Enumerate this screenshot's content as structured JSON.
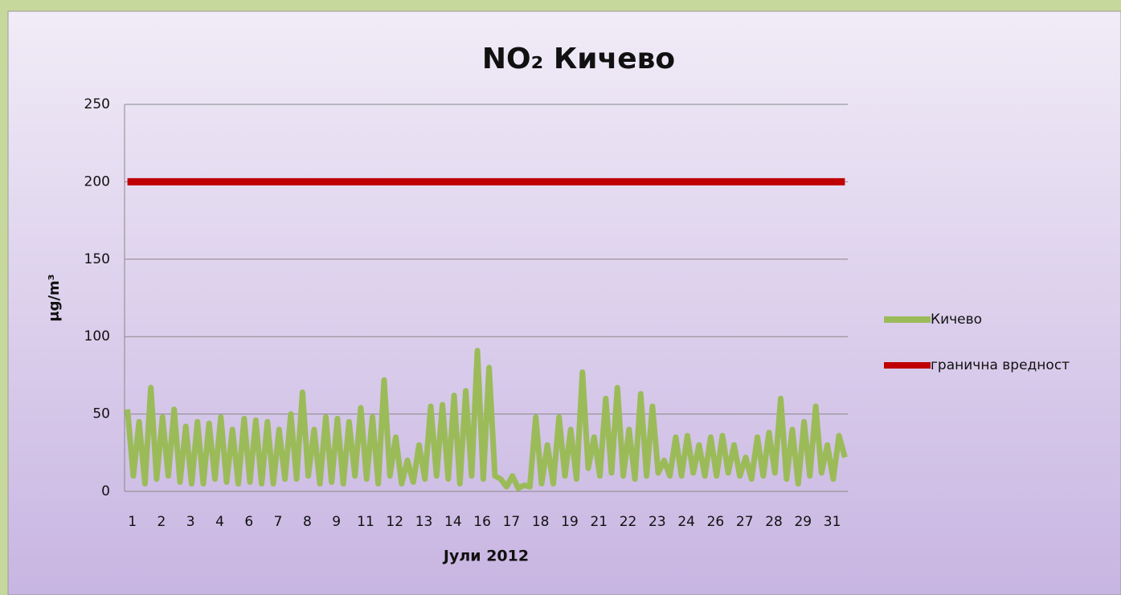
{
  "chart_data": {
    "type": "line",
    "title": "NO₂ Кичево",
    "ylabel": "μg/m³",
    "xlabel": "Јули 2012",
    "categories": [
      "1",
      null,
      null,
      null,
      null,
      "2",
      null,
      null,
      null,
      null,
      "3",
      null,
      null,
      null,
      null,
      "4",
      null,
      null,
      null,
      null,
      "6",
      null,
      null,
      null,
      null,
      "7",
      null,
      null,
      null,
      null,
      "8",
      null,
      null,
      null,
      null,
      "9",
      null,
      null,
      null,
      null,
      "11",
      null,
      null,
      null,
      null,
      "12",
      null,
      null,
      null,
      null,
      "13",
      null,
      null,
      null,
      null,
      "14",
      null,
      null,
      null,
      null,
      "16",
      null,
      null,
      null,
      null,
      "17",
      null,
      null,
      null,
      null,
      "18",
      null,
      null,
      null,
      null,
      "19",
      null,
      null,
      null,
      null,
      "21",
      null,
      null,
      null,
      null,
      "22",
      null,
      null,
      null,
      null,
      "23",
      null,
      null,
      null,
      null,
      "24",
      null,
      null,
      null,
      null,
      "26",
      null,
      null,
      null,
      null,
      "27",
      null,
      null,
      null,
      null,
      "28",
      null,
      null,
      null,
      null,
      "29",
      null,
      null,
      null,
      null,
      "31",
      null,
      null,
      null
    ],
    "series": [
      {
        "name": "Кичево",
        "color": "#9bbb59",
        "values": [
          53,
          10,
          45,
          5,
          67,
          8,
          48,
          10,
          53,
          6,
          42,
          5,
          45,
          5,
          44,
          8,
          48,
          6,
          40,
          5,
          47,
          6,
          46,
          5,
          45,
          5,
          40,
          8,
          50,
          8,
          64,
          10,
          40,
          5,
          48,
          6,
          47,
          5,
          45,
          10,
          54,
          8,
          48,
          5,
          72,
          10,
          35,
          5,
          20,
          6,
          30,
          8,
          55,
          10,
          56,
          8,
          62,
          5,
          65,
          10,
          91,
          8,
          80,
          10,
          8,
          3,
          10,
          2,
          4,
          3,
          48,
          5,
          30,
          5,
          48,
          10,
          40,
          8,
          77,
          15,
          35,
          10,
          60,
          12,
          67,
          10,
          40,
          8,
          63,
          10,
          55,
          12,
          20,
          10,
          35,
          10,
          36,
          12,
          30,
          10,
          35,
          10,
          36,
          12,
          30,
          10,
          22,
          8,
          35,
          10,
          38,
          12,
          60,
          8,
          40,
          5,
          45,
          10,
          55,
          12,
          30,
          8,
          36,
          22
        ]
      },
      {
        "name": "гранична вредност",
        "color": "#c00000",
        "values": [
          200,
          200,
          200,
          200,
          200,
          200,
          200,
          200,
          200,
          200,
          200,
          200,
          200,
          200,
          200,
          200,
          200,
          200,
          200,
          200,
          200,
          200,
          200,
          200,
          200,
          200,
          200,
          200,
          200,
          200,
          200,
          200,
          200,
          200,
          200,
          200,
          200,
          200,
          200,
          200,
          200,
          200,
          200,
          200,
          200,
          200,
          200,
          200,
          200,
          200,
          200,
          200,
          200,
          200,
          200,
          200,
          200,
          200,
          200,
          200,
          200,
          200,
          200,
          200,
          200,
          200,
          200,
          200,
          200,
          200,
          200,
          200,
          200,
          200,
          200,
          200,
          200,
          200,
          200,
          200,
          200,
          200,
          200,
          200,
          200,
          200,
          200,
          200,
          200,
          200,
          200,
          200,
          200,
          200,
          200,
          200,
          200,
          200,
          200,
          200,
          200,
          200,
          200,
          200,
          200,
          200,
          200,
          200,
          200,
          200,
          200,
          200,
          200,
          200,
          200,
          200,
          200,
          200,
          200,
          200,
          200,
          200,
          200,
          200
        ]
      }
    ],
    "ylim": [
      0,
      250
    ],
    "yticks": [
      0,
      50,
      100,
      150,
      200,
      250
    ],
    "grid": true,
    "legend": "right"
  }
}
